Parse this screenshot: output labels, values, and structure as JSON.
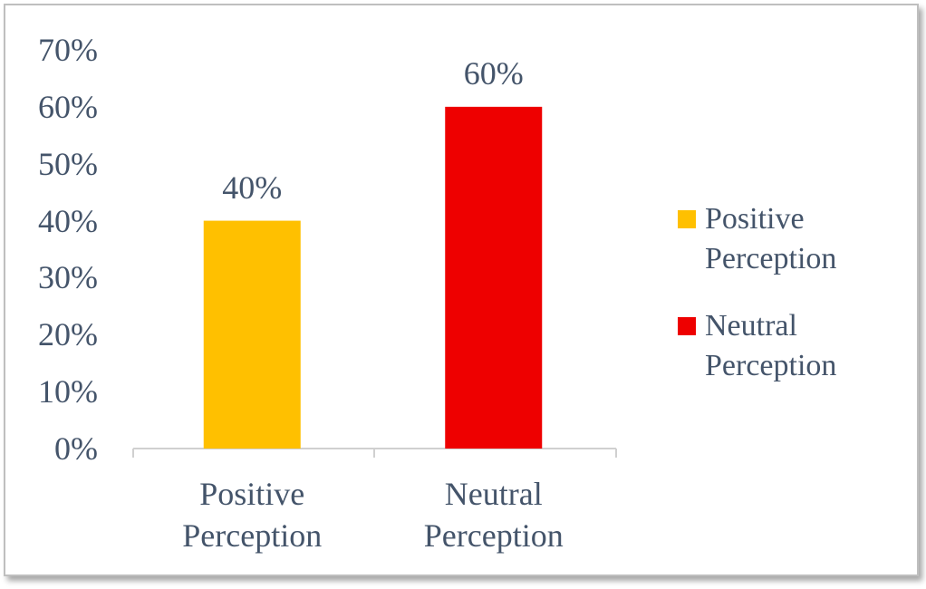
{
  "chart_data": {
    "type": "bar",
    "categories": [
      "Positive Perception",
      "Neutral Perception"
    ],
    "values": [
      40,
      60
    ],
    "value_labels": [
      "40%",
      "60%"
    ],
    "colors": [
      "#ffc000",
      "#ee0000"
    ],
    "ylim": [
      0,
      70
    ],
    "yticks": [
      {
        "value": 0,
        "label": "0%"
      },
      {
        "value": 10,
        "label": "10%"
      },
      {
        "value": 20,
        "label": "20%"
      },
      {
        "value": 30,
        "label": "30%"
      },
      {
        "value": 40,
        "label": "40%"
      },
      {
        "value": 50,
        "label": "50%"
      },
      {
        "value": 60,
        "label": "60%"
      },
      {
        "value": 70,
        "label": "70%"
      }
    ],
    "grid": false,
    "legend": "right"
  }
}
